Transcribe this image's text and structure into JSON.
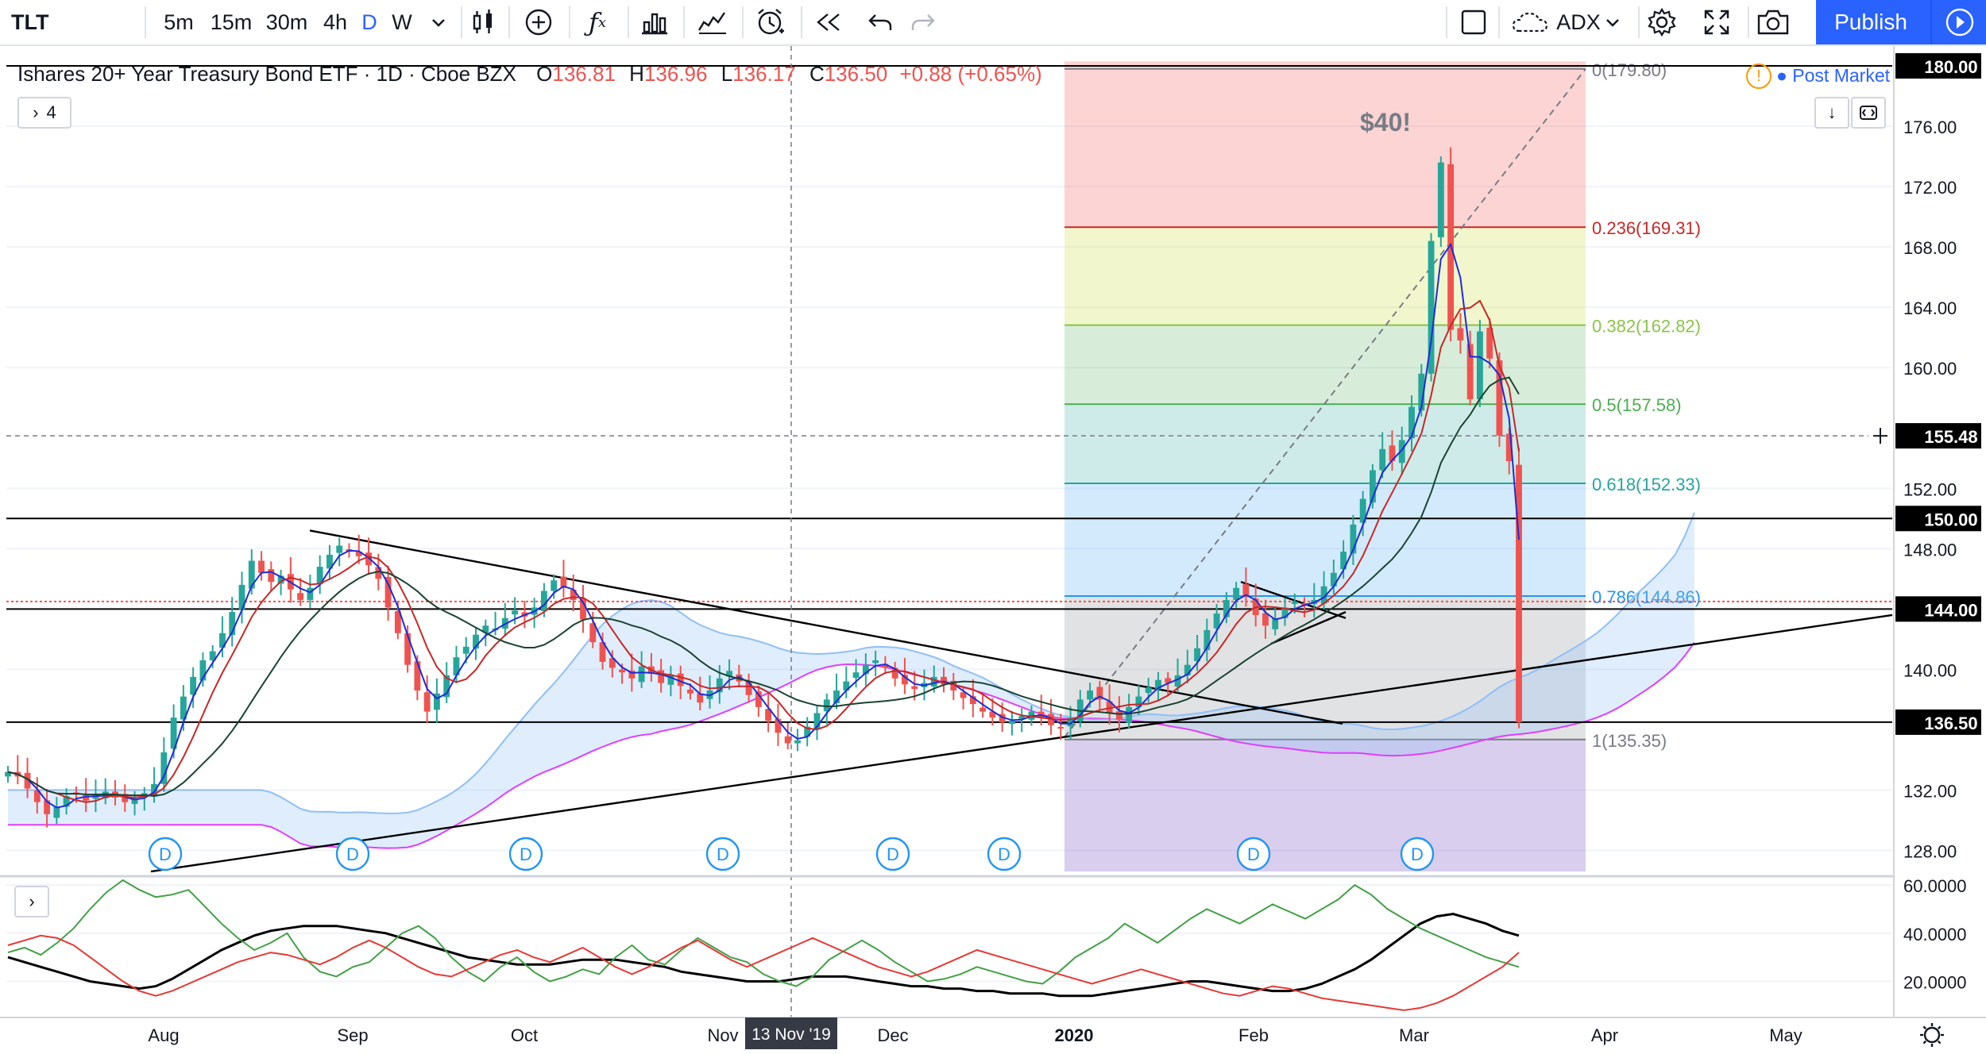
{
  "toolbar": {
    "symbol": "TLT",
    "intervals": [
      "5m",
      "15m",
      "30m",
      "4h",
      "D",
      "W"
    ],
    "active_interval": "D",
    "indicator_label": "ADX",
    "publish_label": "Publish",
    "icons": [
      "chevron-down-icon",
      "candles-icon",
      "add-compare-icon",
      "indicators-icon",
      "bar-chart-icon",
      "templates-icon",
      "alert-icon",
      "replay-icon",
      "undo-icon",
      "redo-icon",
      "layout-icon",
      "cloud-icon",
      "chevron-down-icon",
      "settings-icon",
      "fullscreen-icon",
      "camera-icon",
      "play-icon"
    ]
  },
  "legend": {
    "title": "Ishares 20+ Year Treasury Bond ETF · 1D · Cboe BZX",
    "o_label": "O",
    "o": "136.81",
    "h_label": "H",
    "h": "136.96",
    "l_label": "L",
    "l": "136.17",
    "c_label": "C",
    "c": "136.50",
    "change": "+0.88 (+0.65%)",
    "collapse_count": "4",
    "post_market": "Post Market"
  },
  "chart": {
    "annotation": "$40!",
    "crosshair_date": "13 Nov '19",
    "crosshair_price": "155.48",
    "dividend_marker": "D",
    "colors": {
      "up": "#26a69a",
      "down": "#ef5350",
      "accent": "#2962ff",
      "ma_fast": "#1f2bd6",
      "ma_mid": "#c62828",
      "ma_slow": "#1b4332",
      "cloud": "#cfe2f3",
      "cloud_line": "#e040fb"
    }
  },
  "chart_data": [
    {
      "type": "candlestick",
      "title": "Ishares 20+ Year Treasury Bond ETF · 1D · Cboe BZX",
      "x_ticks": [
        "Aug",
        "Sep",
        "Oct",
        "Nov",
        "Dec",
        "2020",
        "Feb",
        "Mar",
        "Apr",
        "May"
      ],
      "y_ticks": [
        "180.00",
        "176.00",
        "172.00",
        "168.00",
        "164.00",
        "160.00",
        "152.00",
        "148.00",
        "140.00",
        "132.00",
        "128.00"
      ],
      "ylim": [
        126.5,
        181
      ],
      "price_labels": [
        {
          "price": 180.0,
          "label": "180.00"
        },
        {
          "price": 155.48,
          "label": "155.48"
        },
        {
          "price": 150.0,
          "label": "150.00"
        },
        {
          "price": 144.0,
          "label": "144.00"
        },
        {
          "price": 136.5,
          "label": "136.50"
        }
      ],
      "horizontal_levels": [
        180.0,
        150.0,
        144.0,
        136.5
      ],
      "fibonacci": [
        {
          "label": "0(179.80)",
          "price": 179.8
        },
        {
          "label": "0.236(169.31)",
          "price": 169.31
        },
        {
          "label": "0.382(162.82)",
          "price": 162.82
        },
        {
          "label": "0.5(157.58)",
          "price": 157.58
        },
        {
          "label": "0.618(152.33)",
          "price": 152.33
        },
        {
          "label": "0.786(144.86)",
          "price": 144.86
        },
        {
          "label": "1(135.35)",
          "price": 135.35
        }
      ],
      "closes_est": [
        133.2,
        132.9,
        132.1,
        131.2,
        130.4,
        130.9,
        131.6,
        131.8,
        131.3,
        131.7,
        131.9,
        131.5,
        131.2,
        131.4,
        131.8,
        132.4,
        134.5,
        136.8,
        138.2,
        139.5,
        140.6,
        141.2,
        142.4,
        143.8,
        145.6,
        147.2,
        146.4,
        145.8,
        146.2,
        145.3,
        144.6,
        145.4,
        146.8,
        147.6,
        148.2,
        147.8,
        147.5,
        146.9,
        146.0,
        144.1,
        142.4,
        140.3,
        138.6,
        137.2,
        138.4,
        139.6,
        140.8,
        141.5,
        142.3,
        142.9,
        142.7,
        143.4,
        143.9,
        143.5,
        144.1,
        145.2,
        145.9,
        145.4,
        144.6,
        143.3,
        141.8,
        140.5,
        140.1,
        139.8,
        139.4,
        140.2,
        139.7,
        139.1,
        139.6,
        138.9,
        138.4,
        137.8,
        138.6,
        139.4,
        139.9,
        139.2,
        138.3,
        137.5,
        136.6,
        135.8,
        135.1,
        135.3,
        136.2,
        137.1,
        138.0,
        138.6,
        139.2,
        139.8,
        140.3,
        140.6,
        140.1,
        139.4,
        139.0,
        138.7,
        139.1,
        139.5,
        139.0,
        138.6,
        138.1,
        137.7,
        137.2,
        136.8,
        136.5,
        136.6,
        136.9,
        137.2,
        136.8,
        136.3,
        136.1,
        136.8,
        138.0,
        138.6,
        138.0,
        137.1,
        136.7,
        137.5,
        138.2,
        138.8,
        139.3,
        139.1,
        139.6,
        140.3,
        141.4,
        142.6,
        143.7,
        144.6,
        145.4,
        144.8,
        143.6,
        142.9,
        143.4,
        144.1,
        144.5,
        144.2,
        144.6,
        145.5,
        146.4,
        147.8,
        149.6,
        151.3,
        153.2,
        154.6,
        153.8,
        155.2,
        157.4,
        159.6,
        168.4,
        173.6,
        162.5,
        161.8,
        157.9,
        162.4,
        160.6,
        155.5,
        153.8,
        136.5
      ]
    },
    {
      "type": "line",
      "title": "ADX",
      "y_ticks": [
        "60.0000",
        "40.0000",
        "20.0000"
      ],
      "ylim": [
        5,
        63
      ],
      "series": [
        {
          "name": "",
          "color": "#000000",
          "values_est": [
            30,
            28,
            26,
            24,
            22,
            20,
            19,
            18,
            17,
            18,
            21,
            25,
            29,
            33,
            36,
            39,
            41,
            42,
            43,
            43,
            43,
            42,
            41,
            40,
            38,
            36,
            34,
            32,
            30,
            29,
            28,
            27,
            27,
            27,
            28,
            29,
            29,
            29,
            28,
            27,
            26,
            24,
            23,
            22,
            21,
            20,
            20,
            20,
            21,
            22,
            22,
            22,
            21,
            20,
            19,
            18,
            18,
            17,
            17,
            16,
            16,
            15,
            15,
            15,
            14,
            14,
            14,
            15,
            16,
            17,
            18,
            19,
            20,
            20,
            19,
            18,
            17,
            16,
            16,
            17,
            19,
            22,
            25,
            29,
            34,
            39,
            44,
            47,
            48,
            46,
            44,
            41,
            39
          ]
        },
        {
          "name": "",
          "color": "#43a047",
          "values_est": [
            32,
            34,
            31,
            36,
            42,
            50,
            57,
            62,
            58,
            55,
            56,
            58,
            51,
            44,
            38,
            33,
            36,
            40,
            30,
            24,
            22,
            26,
            28,
            34,
            40,
            43,
            38,
            30,
            24,
            20,
            26,
            30,
            24,
            20,
            22,
            25,
            23,
            30,
            35,
            29,
            27,
            33,
            38,
            34,
            30,
            28,
            23,
            20,
            18,
            22,
            29,
            33,
            37,
            33,
            28,
            24,
            20,
            21,
            23,
            26,
            24,
            22,
            20,
            19,
            24,
            30,
            34,
            38,
            44,
            40,
            36,
            41,
            46,
            50,
            47,
            44,
            48,
            52,
            49,
            46,
            50,
            54,
            60,
            56,
            50,
            46,
            42,
            39,
            36,
            33,
            30,
            28,
            26
          ]
        },
        {
          "name": "",
          "color": "#e53935",
          "values_est": [
            35,
            37,
            39,
            38,
            35,
            30,
            25,
            20,
            16,
            14,
            16,
            19,
            22,
            25,
            28,
            30,
            32,
            31,
            29,
            27,
            30,
            34,
            37,
            34,
            30,
            26,
            23,
            22,
            25,
            28,
            31,
            33,
            30,
            28,
            31,
            34,
            30,
            26,
            23,
            26,
            30,
            34,
            37,
            33,
            29,
            26,
            29,
            32,
            35,
            38,
            35,
            32,
            29,
            26,
            24,
            22,
            24,
            27,
            30,
            33,
            31,
            29,
            27,
            25,
            23,
            21,
            19,
            21,
            23,
            25,
            23,
            21,
            19,
            17,
            15,
            14,
            16,
            18,
            17,
            15,
            13,
            12,
            11,
            10,
            9,
            8,
            9,
            11,
            14,
            18,
            22,
            26,
            32
          ]
        }
      ]
    }
  ]
}
